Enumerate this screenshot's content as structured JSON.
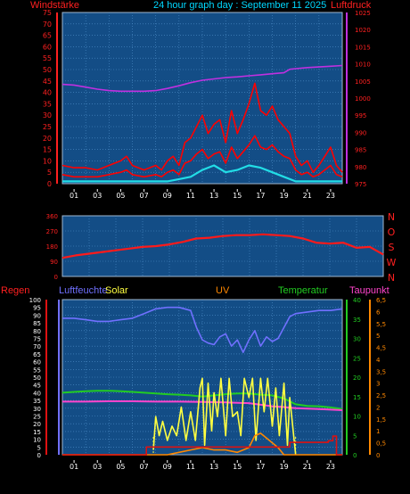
{
  "header": {
    "left_label": "Windstärke",
    "title": "24 hour graph day : September 11 2025",
    "right_label": "Luftdruck"
  },
  "colors": {
    "background": "#000000",
    "plot_bg": "#134d86",
    "grid": "#4f8fca",
    "wind": "#ff0000",
    "gust": "#ff0000",
    "wind_avg": "#22dde6",
    "pressure": "#c030e0",
    "direction": "#ff1a1a",
    "humidity": "#7070ff",
    "solar": "#ffff40",
    "uv": "#ff8800",
    "temperature": "#22cc22",
    "dewpoint": "#ff44cc",
    "rain": "#dd1111",
    "title": "#00d8ff"
  },
  "chart_data": [
    {
      "type": "line",
      "name": "wind_pressure",
      "x_ticks": [
        "01",
        "03",
        "05",
        "07",
        "09",
        "11",
        "13",
        "15",
        "17",
        "19",
        "21",
        "23"
      ],
      "y_left": {
        "label": "Windstärke",
        "ticks": [
          "0",
          "5",
          "10",
          "15",
          "20",
          "25",
          "30",
          "35",
          "40",
          "45",
          "50",
          "55",
          "60",
          "65",
          "70",
          "75"
        ],
        "ylim": [
          0,
          75
        ]
      },
      "y_right": {
        "label": "Luftdruck",
        "ticks": [
          "975",
          "980",
          "985",
          "990",
          "995",
          "1000",
          "1005",
          "1010",
          "1015",
          "1020",
          "1025"
        ],
        "ylim": [
          975,
          1025
        ]
      },
      "series": [
        {
          "key": "gust",
          "axis": "left",
          "x": [
            0,
            1,
            2,
            3,
            4,
            5,
            5.5,
            6,
            7,
            8,
            8.5,
            9,
            9.5,
            10,
            10.5,
            11,
            11.5,
            12,
            12.5,
            13,
            13.5,
            14,
            14.5,
            15,
            15.5,
            16,
            16.5,
            17,
            17.5,
            18,
            18.5,
            19,
            19.5,
            20,
            20.5,
            21,
            21.5,
            22,
            22.5,
            23,
            23.5,
            24
          ],
          "y": [
            8,
            7,
            7,
            6,
            8,
            10,
            12,
            8,
            6,
            8,
            6,
            10,
            12,
            8,
            18,
            20,
            25,
            30,
            22,
            26,
            28,
            18,
            32,
            22,
            28,
            35,
            44,
            32,
            30,
            34,
            28,
            25,
            22,
            12,
            8,
            10,
            5,
            8,
            12,
            16,
            8,
            5
          ]
        },
        {
          "key": "wind",
          "axis": "left",
          "x": [
            0,
            1,
            2,
            3,
            4,
            5,
            5.5,
            6,
            7,
            8,
            8.5,
            9,
            9.5,
            10,
            10.5,
            11,
            11.5,
            12,
            12.5,
            13,
            13.5,
            14,
            14.5,
            15,
            15.5,
            16,
            16.5,
            17,
            17.5,
            18,
            18.5,
            19,
            19.5,
            20,
            20.5,
            21,
            21.5,
            22,
            22.5,
            23,
            23.5,
            24
          ],
          "y": [
            4,
            3,
            3,
            3,
            4,
            5,
            6,
            4,
            3,
            4,
            3,
            5,
            6,
            4,
            9,
            10,
            13,
            15,
            11,
            13,
            14,
            9,
            16,
            11,
            14,
            17,
            21,
            16,
            15,
            17,
            14,
            12,
            11,
            6,
            4,
            5,
            3,
            4,
            6,
            8,
            4,
            3
          ]
        },
        {
          "key": "wind_avg",
          "axis": "left",
          "x": [
            0,
            2,
            4,
            6,
            8,
            9,
            10,
            11,
            12,
            13,
            14,
            15,
            16,
            17,
            18,
            19,
            20,
            21,
            22,
            23,
            24
          ],
          "y": [
            1,
            1,
            1,
            1,
            1,
            1,
            2,
            3,
            6,
            8,
            5,
            6,
            8,
            7,
            5,
            3,
            1,
            1,
            1,
            1,
            1
          ]
        },
        {
          "key": "pressure",
          "axis": "right",
          "x": [
            0,
            1,
            2,
            3,
            4,
            5,
            6,
            7,
            8,
            9,
            10,
            11,
            12,
            13,
            14,
            15,
            16,
            17,
            18,
            19,
            19.5,
            20,
            21,
            22,
            23,
            24
          ],
          "y": [
            1004,
            1003.8,
            1003.2,
            1002.6,
            1002.2,
            1002,
            1002,
            1002,
            1002.2,
            1002.8,
            1003.6,
            1004.5,
            1005.2,
            1005.6,
            1006,
            1006.2,
            1006.5,
            1006.8,
            1007.1,
            1007.4,
            1008.4,
            1008.6,
            1008.9,
            1009.1,
            1009.3,
            1009.5
          ]
        }
      ]
    },
    {
      "type": "line",
      "name": "wind_direction",
      "y_ticks": [
        "0",
        "90",
        "180",
        "270",
        "360"
      ],
      "ylim": [
        0,
        360
      ],
      "right_letters": [
        "N",
        "W",
        "S",
        "O",
        "N"
      ],
      "series": [
        {
          "key": "direction",
          "x": [
            0,
            1,
            2,
            3,
            4,
            5,
            6,
            7,
            8,
            9,
            10,
            11,
            12,
            13,
            14,
            15,
            16,
            17,
            18,
            19,
            20,
            21,
            22,
            23,
            24
          ],
          "y": [
            110,
            125,
            135,
            145,
            155,
            165,
            175,
            180,
            190,
            205,
            225,
            230,
            240,
            245,
            245,
            250,
            245,
            240,
            225,
            200,
            195,
            200,
            170,
            175,
            130
          ]
        }
      ]
    },
    {
      "type": "line",
      "name": "combined",
      "headers": [
        "Regen",
        "Luftfeuchte",
        "Solar",
        "UV",
        "Temperatur",
        "Taupunkt"
      ],
      "y_left": {
        "label": "Regen",
        "ticks": [
          "0",
          "5",
          "10",
          "15",
          "20",
          "25",
          "30",
          "35",
          "40",
          "45",
          "50",
          "55",
          "60",
          "65",
          "70",
          "75",
          "80",
          "85",
          "90",
          "95",
          "100"
        ],
        "ylim": [
          0,
          100
        ]
      },
      "y_right_temp": {
        "label": "Temperatur",
        "ticks": [
          "0",
          "5",
          "10",
          "15",
          "20",
          "25",
          "30",
          "35",
          "40"
        ],
        "ylim": [
          0,
          40
        ]
      },
      "y_right_uv": {
        "label": "Taupunkt",
        "ticks": [
          "0",
          "0,5",
          "1",
          "1,5",
          "2",
          "2,5",
          "3",
          "3,5",
          "4",
          "4,5",
          "5",
          "5,5",
          "6",
          "6,5"
        ],
        "ylim": [
          0,
          6.5
        ]
      },
      "series": [
        {
          "key": "humidity",
          "axis": "left",
          "x": [
            0,
            1,
            2,
            3,
            4,
            5,
            6,
            7,
            8,
            9,
            10,
            11,
            11.5,
            12,
            12.5,
            13,
            13.5,
            14,
            14.5,
            15,
            15.5,
            16,
            16.5,
            17,
            17.5,
            18,
            18.5,
            19,
            19.5,
            20,
            21,
            22,
            23,
            24
          ],
          "y": [
            88,
            88,
            87,
            86,
            86,
            87,
            88,
            91,
            94,
            95,
            95,
            93,
            82,
            74,
            72,
            71,
            76,
            78,
            70,
            74,
            66,
            74,
            80,
            70,
            76,
            73,
            75,
            82,
            89,
            91,
            92,
            93,
            93,
            94
          ]
        },
        {
          "key": "temperature",
          "axis": "temp",
          "x": [
            0,
            1,
            2,
            3,
            4,
            5,
            6,
            7,
            8,
            9,
            10,
            11,
            12,
            13,
            14,
            15,
            16,
            17,
            18,
            19,
            20,
            21,
            22,
            23,
            24
          ],
          "y": [
            16,
            16.2,
            16.4,
            16.5,
            16.5,
            16.4,
            16.2,
            16,
            15.8,
            15.6,
            15.5,
            15.3,
            15,
            15.3,
            15.6,
            15.8,
            15.8,
            15.5,
            15.3,
            14.5,
            13,
            12.6,
            12.5,
            12.2,
            11.8
          ]
        },
        {
          "key": "dewpoint",
          "axis": "temp",
          "x": [
            0,
            2,
            4,
            6,
            8,
            10,
            12,
            14,
            16,
            18,
            19,
            20,
            22,
            24
          ],
          "y": [
            13.7,
            13.7,
            13.8,
            13.8,
            13.7,
            13.7,
            13.6,
            13.5,
            13.3,
            12.5,
            12.3,
            12,
            11.8,
            11.5
          ]
        },
        {
          "key": "solar",
          "axis": "uv",
          "x": [
            7.8,
            8,
            8.3,
            8.6,
            9,
            9.4,
            9.8,
            10.2,
            10.6,
            11,
            11.4,
            11.8,
            12,
            12.2,
            12.5,
            12.8,
            13,
            13.3,
            13.6,
            14,
            14.3,
            14.6,
            15,
            15.3,
            15.6,
            16,
            16.3,
            16.6,
            17,
            17.3,
            17.6,
            18,
            18.3,
            18.6,
            19,
            19.3,
            19.5,
            20
          ],
          "y": [
            0.2,
            1.6,
            0.8,
            1.4,
            0.6,
            1.2,
            0.8,
            2.0,
            0.6,
            1.8,
            0.6,
            2.8,
            3.2,
            0.4,
            3.0,
            1.0,
            2.6,
            1.6,
            3.2,
            0.8,
            3.2,
            1.6,
            1.8,
            0.8,
            3.2,
            2.4,
            3.2,
            0.6,
            3.2,
            1.8,
            3.2,
            1.2,
            2.8,
            0.8,
            3.0,
            0.4,
            2.4,
            0
          ]
        },
        {
          "key": "uv",
          "axis": "uv",
          "x": [
            0,
            9,
            10,
            11,
            12,
            13,
            14,
            15,
            16,
            16.5,
            17,
            17.5,
            18,
            18.5,
            19,
            20,
            24
          ],
          "y": [
            0,
            0,
            0.1,
            0.2,
            0.3,
            0.2,
            0.2,
            0.1,
            0.3,
            0.8,
            0.9,
            0.7,
            0.5,
            0.3,
            0,
            0,
            0
          ]
        },
        {
          "key": "rain",
          "axis": "left",
          "x": [
            0,
            7,
            7.2,
            8,
            19,
            19.5,
            20,
            22,
            22.8,
            23.2,
            23.5,
            24
          ],
          "y": [
            0,
            0,
            5,
            5,
            5,
            8,
            8,
            8,
            9,
            12,
            0,
            0
          ]
        }
      ]
    }
  ]
}
